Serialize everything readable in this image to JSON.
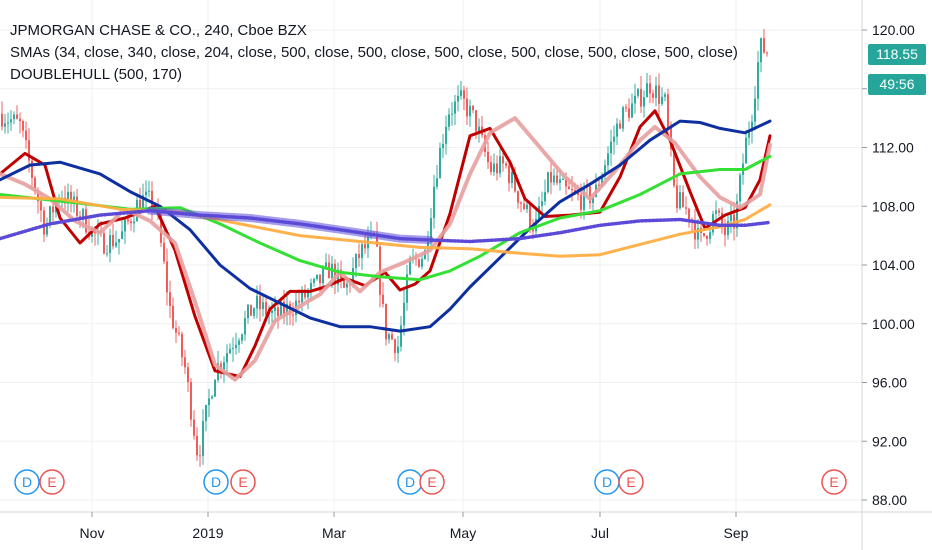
{
  "legend": {
    "title": "JPMORGAN CHASE & CO., 240, Cboe BZX",
    "sma": "SMAs (34, close, 340, close, 204, close, 500, close, 500, close, 500, close, 500, close, 500, close, 500, close)",
    "hull": "DOUBLEHULL (500, 170)"
  },
  "price_tags": {
    "last_price": "118.55",
    "countdown": "49:56",
    "color": "#26a69a"
  },
  "event_markers": {
    "dividend_label": "D",
    "earnings_label": "E",
    "dividend_color": "#2196f3",
    "earnings_color": "#ef5350"
  },
  "chart_data": {
    "type": "line",
    "ylim": [
      88,
      120.8
    ],
    "y_ticks": [
      "120.00",
      "116.00",
      "112.00",
      "108.00",
      "104.00",
      "100.00",
      "96.00",
      "92.00",
      "88.00"
    ],
    "x_ticks": [
      "Nov",
      "2019",
      "Mar",
      "May",
      "Jul",
      "Sep"
    ],
    "grid": true,
    "colors": {
      "up_candle": "#26a69a",
      "down_candle": "#ef5350",
      "fast_hull": "#c00000",
      "slow_hull": "#e8a0a0",
      "blue_sma": "#0d2fa0",
      "green_sma": "#33e033",
      "orange_sma": "#ffae42",
      "purple_sma": "#5b4ad8",
      "grid": "#eef0f3"
    },
    "series": [
      {
        "key": "fast_hull",
        "values": [
          [
            0,
            110.2
          ],
          [
            25,
            111.6
          ],
          [
            45,
            110.8
          ],
          [
            60,
            107.2
          ],
          [
            80,
            105.5
          ],
          [
            100,
            106.8
          ],
          [
            125,
            107.2
          ],
          [
            155,
            108
          ],
          [
            175,
            105
          ],
          [
            195,
            100.5
          ],
          [
            215,
            96.8
          ],
          [
            240,
            96.4
          ],
          [
            255,
            98.5
          ],
          [
            270,
            101
          ],
          [
            290,
            102.2
          ],
          [
            310,
            102.2
          ],
          [
            325,
            102.5
          ],
          [
            345,
            103.1
          ],
          [
            365,
            102.6
          ],
          [
            385,
            103.5
          ],
          [
            400,
            102.3
          ],
          [
            415,
            102.7
          ],
          [
            430,
            103.6
          ],
          [
            450,
            107.5
          ],
          [
            470,
            112.8
          ],
          [
            490,
            113.3
          ],
          [
            510,
            111
          ],
          [
            525,
            108.5
          ],
          [
            545,
            107.3
          ],
          [
            570,
            107.4
          ],
          [
            600,
            107.6
          ],
          [
            620,
            110
          ],
          [
            640,
            113.4
          ],
          [
            655,
            114.5
          ],
          [
            670,
            112.5
          ],
          [
            690,
            109
          ],
          [
            705,
            106.5
          ],
          [
            725,
            107.4
          ],
          [
            745,
            107.9
          ],
          [
            760,
            109.8
          ],
          [
            770,
            112.8
          ]
        ]
      },
      {
        "key": "slow_hull",
        "values": [
          [
            0,
            110.2
          ],
          [
            25,
            109.5
          ],
          [
            50,
            108.5
          ],
          [
            75,
            107
          ],
          [
            100,
            106.2
          ],
          [
            125,
            107.8
          ],
          [
            150,
            107
          ],
          [
            175,
            105.5
          ],
          [
            195,
            101.5
          ],
          [
            215,
            97.2
          ],
          [
            235,
            96.2
          ],
          [
            255,
            97.5
          ],
          [
            275,
            100.2
          ],
          [
            300,
            101.2
          ],
          [
            320,
            102
          ],
          [
            340,
            103.5
          ],
          [
            360,
            102.2
          ],
          [
            380,
            103.5
          ],
          [
            405,
            104.2
          ],
          [
            430,
            105
          ],
          [
            450,
            106.8
          ],
          [
            470,
            110.2
          ],
          [
            490,
            113
          ],
          [
            515,
            114
          ],
          [
            540,
            112
          ],
          [
            565,
            110
          ],
          [
            590,
            108.5
          ],
          [
            615,
            110.4
          ],
          [
            640,
            112.5
          ],
          [
            655,
            113.4
          ],
          [
            675,
            112.3
          ],
          [
            700,
            110
          ],
          [
            720,
            108.6
          ],
          [
            740,
            107.9
          ],
          [
            760,
            108.8
          ],
          [
            770,
            112.2
          ]
        ]
      },
      {
        "key": "blue_sma",
        "values": [
          [
            0,
            109.8
          ],
          [
            30,
            110.8
          ],
          [
            60,
            111
          ],
          [
            100,
            110.2
          ],
          [
            130,
            109
          ],
          [
            160,
            108
          ],
          [
            190,
            106.4
          ],
          [
            220,
            104
          ],
          [
            250,
            102.4
          ],
          [
            280,
            101.4
          ],
          [
            310,
            100.4
          ],
          [
            340,
            99.8
          ],
          [
            370,
            99.8
          ],
          [
            400,
            99.5
          ],
          [
            430,
            99.8
          ],
          [
            450,
            101
          ],
          [
            470,
            102.5
          ],
          [
            500,
            104.5
          ],
          [
            530,
            106.5
          ],
          [
            560,
            108.3
          ],
          [
            590,
            109.5
          ],
          [
            620,
            110.8
          ],
          [
            650,
            112.5
          ],
          [
            680,
            113.8
          ],
          [
            700,
            113.7
          ],
          [
            720,
            113.3
          ],
          [
            745,
            113
          ],
          [
            770,
            113.8
          ]
        ]
      },
      {
        "key": "green_sma",
        "values": [
          [
            0,
            108.8
          ],
          [
            40,
            108.5
          ],
          [
            80,
            108.2
          ],
          [
            130,
            107.8
          ],
          [
            180,
            107.9
          ],
          [
            220,
            106.8
          ],
          [
            260,
            105.5
          ],
          [
            300,
            104.3
          ],
          [
            340,
            103.5
          ],
          [
            380,
            103.2
          ],
          [
            420,
            103
          ],
          [
            450,
            103.6
          ],
          [
            480,
            104.6
          ],
          [
            520,
            106.2
          ],
          [
            560,
            107.2
          ],
          [
            600,
            107.7
          ],
          [
            640,
            108.8
          ],
          [
            680,
            110.2
          ],
          [
            720,
            110.5
          ],
          [
            745,
            110.5
          ],
          [
            770,
            111.4
          ]
        ]
      },
      {
        "key": "orange_sma",
        "values": [
          [
            0,
            108.6
          ],
          [
            60,
            108.5
          ],
          [
            120,
            107.8
          ],
          [
            180,
            107.6
          ],
          [
            240,
            106.8
          ],
          [
            300,
            106
          ],
          [
            360,
            105.6
          ],
          [
            420,
            105.2
          ],
          [
            470,
            105.1
          ],
          [
            520,
            104.8
          ],
          [
            560,
            104.6
          ],
          [
            600,
            104.7
          ],
          [
            640,
            105.4
          ],
          [
            680,
            106.1
          ],
          [
            720,
            106.6
          ],
          [
            745,
            107.1
          ],
          [
            770,
            108.1
          ]
        ]
      },
      {
        "key": "purple_sma",
        "values": [
          [
            0,
            105.8
          ],
          [
            50,
            106.8
          ],
          [
            100,
            107.4
          ],
          [
            150,
            107.7
          ],
          [
            200,
            107.4
          ],
          [
            250,
            107.2
          ],
          [
            300,
            106.8
          ],
          [
            350,
            106.3
          ],
          [
            400,
            105.8
          ],
          [
            430,
            105.7
          ],
          [
            470,
            105.6
          ],
          [
            520,
            105.8
          ],
          [
            560,
            106.2
          ],
          [
            600,
            106.7
          ],
          [
            640,
            107
          ],
          [
            680,
            107.1
          ],
          [
            720,
            106.7
          ],
          [
            745,
            106.7
          ],
          [
            770,
            106.9
          ]
        ]
      }
    ],
    "candles": {
      "values": [
        [
          0,
          114.3
        ],
        [
          20,
          113.5
        ],
        [
          45,
          106.5
        ],
        [
          60,
          109
        ],
        [
          80,
          107.5
        ],
        [
          100,
          105.5
        ],
        [
          120,
          105.8
        ],
        [
          140,
          108.5
        ],
        [
          155,
          108.2
        ],
        [
          170,
          101
        ],
        [
          185,
          97
        ],
        [
          198,
          91
        ],
        [
          215,
          96.8
        ],
        [
          235,
          99
        ],
        [
          255,
          101.3
        ],
        [
          275,
          100.5
        ],
        [
          295,
          101.3
        ],
        [
          315,
          102.5
        ],
        [
          330,
          103.8
        ],
        [
          345,
          102.2
        ],
        [
          360,
          104.8
        ],
        [
          375,
          105.8
        ],
        [
          385,
          99.5
        ],
        [
          398,
          98.5
        ],
        [
          410,
          104
        ],
        [
          425,
          104.8
        ],
        [
          435,
          110
        ],
        [
          448,
          114.5
        ],
        [
          462,
          115.2
        ],
        [
          475,
          113.8
        ],
        [
          490,
          110.5
        ],
        [
          505,
          110.8
        ],
        [
          520,
          108.5
        ],
        [
          535,
          106.5
        ],
        [
          550,
          110
        ],
        [
          565,
          109
        ],
        [
          580,
          108.5
        ],
        [
          595,
          108.8
        ],
        [
          605,
          111
        ],
        [
          620,
          114
        ],
        [
          635,
          115
        ],
        [
          650,
          116.3
        ],
        [
          665,
          115
        ],
        [
          675,
          108.5
        ],
        [
          690,
          107.5
        ],
        [
          700,
          105.5
        ],
        [
          715,
          107.5
        ],
        [
          725,
          106.2
        ],
        [
          735,
          107
        ],
        [
          745,
          112
        ],
        [
          752,
          114.5
        ],
        [
          760,
          118.8
        ],
        [
          767,
          118.6
        ]
      ]
    },
    "event_markers": [
      {
        "type": "dividend",
        "x": 27
      },
      {
        "type": "earnings",
        "x": 52
      },
      {
        "type": "dividend",
        "x": 216
      },
      {
        "type": "earnings",
        "x": 243
      },
      {
        "type": "dividend",
        "x": 410
      },
      {
        "type": "earnings",
        "x": 432
      },
      {
        "type": "dividend",
        "x": 607
      },
      {
        "type": "earnings",
        "x": 631
      },
      {
        "type": "earnings",
        "x": 834
      }
    ]
  }
}
